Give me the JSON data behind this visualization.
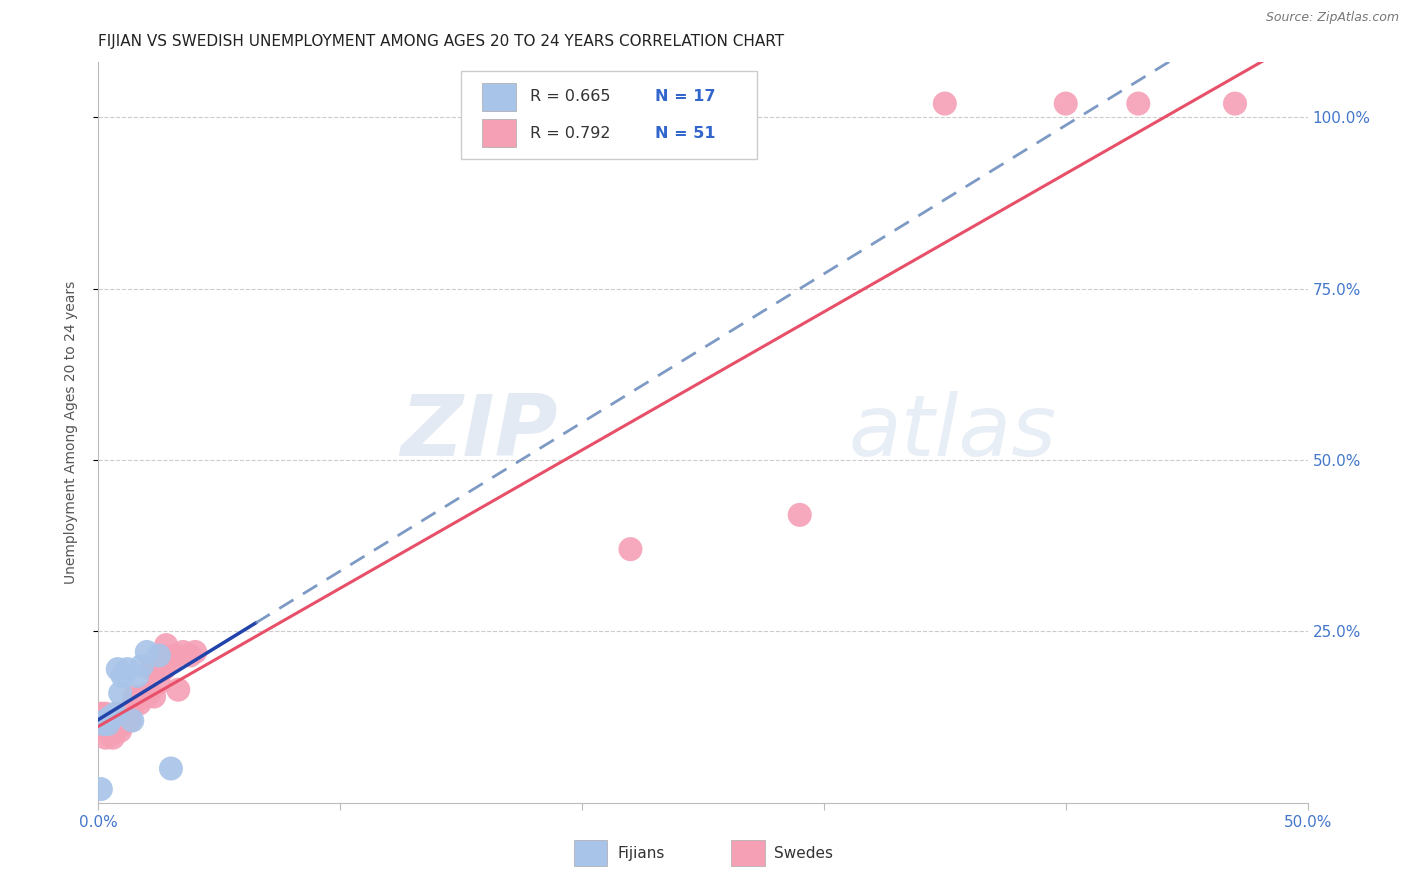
{
  "title": "FIJIAN VS SWEDISH UNEMPLOYMENT AMONG AGES 20 TO 24 YEARS CORRELATION CHART",
  "source": "Source: ZipAtlas.com",
  "ylabel": "Unemployment Among Ages 20 to 24 years",
  "xlim": [
    0.0,
    0.5
  ],
  "ylim": [
    0.0,
    1.08
  ],
  "xtick_labels": [
    "0.0%",
    "",
    "",
    "",
    "",
    "50.0%"
  ],
  "xtick_values": [
    0.0,
    0.1,
    0.2,
    0.3,
    0.4,
    0.5
  ],
  "ytick_labels": [
    "100.0%",
    "75.0%",
    "50.0%",
    "25.0%"
  ],
  "ytick_values": [
    1.0,
    0.75,
    0.5,
    0.25
  ],
  "fijian_color": "#a8c4e8",
  "swedish_color": "#f5a0b5",
  "fijian_line_color": "#2244aa",
  "fijian_dash_color": "#6688bb",
  "swedish_line_color": "#e8506a",
  "watermark_zip": "ZIP",
  "watermark_atlas": "atlas",
  "legend_r_fijian": "R = 0.665",
  "legend_n_fijian": "N = 17",
  "legend_r_swedish": "R = 0.792",
  "legend_n_swedish": "N = 51",
  "fijian_x": [
    0.001,
    0.002,
    0.003,
    0.004,
    0.005,
    0.006,
    0.007,
    0.008,
    0.009,
    0.01,
    0.012,
    0.014,
    0.016,
    0.018,
    0.02,
    0.025,
    0.03
  ],
  "fijian_y": [
    0.02,
    0.115,
    0.12,
    0.115,
    0.125,
    0.125,
    0.13,
    0.195,
    0.16,
    0.185,
    0.195,
    0.12,
    0.185,
    0.2,
    0.22,
    0.215,
    0.05
  ],
  "swedish_x": [
    0.001,
    0.001,
    0.002,
    0.002,
    0.003,
    0.003,
    0.003,
    0.004,
    0.004,
    0.004,
    0.005,
    0.005,
    0.005,
    0.006,
    0.006,
    0.007,
    0.007,
    0.008,
    0.008,
    0.009,
    0.009,
    0.01,
    0.01,
    0.011,
    0.012,
    0.013,
    0.014,
    0.015,
    0.016,
    0.017,
    0.018,
    0.02,
    0.021,
    0.022,
    0.023,
    0.025,
    0.026,
    0.027,
    0.028,
    0.03,
    0.032,
    0.033,
    0.035,
    0.038,
    0.04,
    0.22,
    0.29,
    0.35,
    0.4,
    0.43,
    0.47
  ],
  "swedish_y": [
    0.11,
    0.13,
    0.11,
    0.125,
    0.095,
    0.11,
    0.13,
    0.105,
    0.12,
    0.115,
    0.1,
    0.12,
    0.11,
    0.095,
    0.115,
    0.105,
    0.125,
    0.11,
    0.13,
    0.115,
    0.105,
    0.125,
    0.115,
    0.12,
    0.13,
    0.12,
    0.14,
    0.155,
    0.15,
    0.145,
    0.155,
    0.155,
    0.16,
    0.195,
    0.155,
    0.175,
    0.215,
    0.195,
    0.23,
    0.205,
    0.215,
    0.165,
    0.22,
    0.215,
    0.22,
    0.37,
    0.42,
    1.02,
    1.02,
    1.02,
    1.02
  ],
  "bg_color": "#ffffff",
  "grid_color": "#cccccc",
  "tick_color": "#4477cc",
  "axis_color": "#bbbbbb",
  "title_fontsize": 11,
  "axis_fontsize": 11,
  "ylabel_fontsize": 10
}
